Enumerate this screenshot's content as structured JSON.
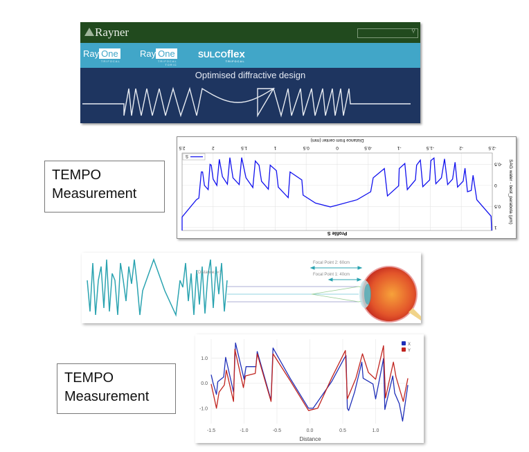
{
  "banner": {
    "logo_text": "Rayner",
    "search_icon": "search-icon",
    "products": [
      {
        "name_a": "Ray",
        "name_b": "One",
        "sub": "TRIFOCAL"
      },
      {
        "name_a": "Ray",
        "name_b": "One",
        "sub": "TRIFOCAL TORIC"
      },
      {
        "name_a": "SULCO",
        "name_b": "flex",
        "sub": "TRIFOCAL"
      }
    ],
    "title": "Optimised diffractive design",
    "colors": {
      "header": "#214a1e",
      "products": "#41a6c8",
      "body": "#1e3560"
    }
  },
  "tempo_labels": [
    {
      "line1": "TEMPO",
      "line2": "Measurement"
    },
    {
      "line1": "TEMPO",
      "line2": "Measurement"
    }
  ],
  "optics": {
    "distance_label": "(Distance: ∞)",
    "focal2": "Focal Point 2: 60cm",
    "focal1": "Focal Point 1: 40cm",
    "wave_color": "#2aa3b0"
  },
  "chart_data": [
    {
      "type": "line",
      "title": "Profile S",
      "xlabel": "Distance from center (mm)",
      "ylabel": "SAG water - best_parabola (μm)",
      "orientation": "rotated 180 degrees",
      "xlim": [
        -2.5,
        2.5
      ],
      "ylim": [
        -0.77,
        1.07
      ],
      "xticks": [
        "-2.5",
        "-2",
        "-1.5",
        "-1",
        "-0.5",
        "0",
        "0.5",
        "1",
        "1.5",
        "2",
        "2.5"
      ],
      "yticks": [
        "-0.5",
        "0",
        "0.5",
        "1"
      ],
      "grid": true,
      "legend": "top-right",
      "series": [
        {
          "name": "S",
          "color": "#1010ee",
          "x": [
            2.5,
            2.5,
            2.27,
            2.23,
            2.19,
            2.17,
            2.14,
            2.08,
            2.05,
            2.03,
            2.0,
            1.94,
            1.9,
            1.85,
            1.77,
            1.73,
            1.68,
            1.58,
            1.54,
            1.47,
            1.36,
            1.32,
            1.26,
            1.22,
            1.11,
            1.08,
            0.98,
            0.95,
            0.79,
            0.76,
            0.57,
            0.55,
            0.35,
            0.11,
            -0.02,
            -0.32,
            -0.54,
            -0.58,
            -0.76,
            -0.81,
            -0.99,
            -1.0,
            -1.09,
            -1.13,
            -1.26,
            -1.28,
            -1.34,
            -1.38,
            -1.49,
            -1.51,
            -1.56,
            -1.59,
            -1.68,
            -1.73,
            -1.78,
            -1.86,
            -1.9,
            -1.94,
            -2.03,
            -2.06,
            -2.1,
            -2.16,
            -2.19,
            -2.25,
            -2.48,
            -2.49
          ],
          "y": [
            1.07,
            0.75,
            0.34,
            0.3,
            -0.32,
            -0.32,
            0.0,
            0.1,
            -0.5,
            -0.48,
            -0.15,
            0.0,
            -0.62,
            -0.21,
            -0.03,
            -0.66,
            -0.18,
            -0.02,
            -0.66,
            -0.18,
            0.05,
            -0.58,
            -0.48,
            -0.1,
            0.09,
            -0.48,
            -0.35,
            0.04,
            0.29,
            -0.32,
            -0.13,
            0.23,
            0.42,
            0.51,
            0.46,
            0.34,
            0.15,
            -0.18,
            -0.4,
            0.25,
            0.01,
            -0.4,
            -0.52,
            0.1,
            -0.13,
            -0.48,
            -0.6,
            0.03,
            -0.13,
            -0.59,
            -0.65,
            -0.04,
            -0.18,
            -0.63,
            -0.02,
            -0.15,
            -0.55,
            0.04,
            -0.1,
            -0.41,
            0.15,
            0.12,
            -0.24,
            0.34,
            0.73,
            1.07
          ]
        }
      ]
    },
    {
      "type": "line",
      "xlabel": "Distance",
      "ylabel": "",
      "xlim": [
        -1.5,
        1.5
      ],
      "ylim": [
        -1.6,
        1.75
      ],
      "xticks": [
        "-1.5",
        "-1.0",
        "-0.5",
        "0.0",
        "0.5",
        "1.0"
      ],
      "yticks": [
        "1.0",
        "0.0",
        "-1.0"
      ],
      "grid": true,
      "legend": "top-right",
      "series": [
        {
          "name": "X",
          "color": "#1f2fb8",
          "x": [
            -1.5,
            -1.47,
            -1.42,
            -1.4,
            -1.31,
            -1.28,
            -1.26,
            -1.16,
            -1.13,
            -1.0,
            -0.97,
            -0.82,
            -0.8,
            -0.59,
            -0.56,
            -0.3,
            -0.02,
            0.05,
            0.33,
            0.52,
            0.55,
            0.57,
            0.59,
            0.68,
            0.79,
            0.81,
            0.96,
            1.0,
            1.12,
            1.14,
            1.26,
            1.29,
            1.36,
            1.41,
            1.49
          ],
          "y": [
            0.34,
            0.0,
            -0.44,
            0.06,
            0.25,
            1.03,
            0.8,
            -0.35,
            1.6,
            0.16,
            0.66,
            0.66,
            1.26,
            -0.67,
            1.4,
            0.2,
            -0.99,
            -0.99,
            0.06,
            0.98,
            1.1,
            -0.99,
            -1.08,
            -0.35,
            0.84,
            0.2,
            -0.03,
            -0.62,
            0.98,
            -1.04,
            0.29,
            -0.39,
            -0.81,
            -1.5,
            -0.07
          ]
        },
        {
          "name": "Y",
          "color": "#c0231e",
          "x": [
            -1.5,
            -1.42,
            -1.38,
            -1.3,
            -1.27,
            -1.16,
            -1.14,
            -1.01,
            -0.98,
            -0.83,
            -0.8,
            -0.59,
            -0.56,
            -0.3,
            -0.02,
            0.12,
            0.33,
            0.54,
            0.57,
            0.7,
            0.8,
            0.89,
            1.0,
            1.12,
            1.15,
            1.27,
            1.31,
            1.42,
            1.49
          ],
          "y": [
            -0.03,
            -0.99,
            -0.35,
            -0.07,
            0.52,
            -0.72,
            1.35,
            -0.17,
            0.29,
            0.39,
            1.17,
            -0.72,
            1.17,
            0.11,
            -1.08,
            -0.99,
            0.2,
            1.3,
            -0.62,
            0.2,
            1.17,
            0.43,
            0.16,
            1.49,
            -0.58,
            0.84,
            0.25,
            -0.72,
            0.2
          ]
        }
      ]
    }
  ]
}
